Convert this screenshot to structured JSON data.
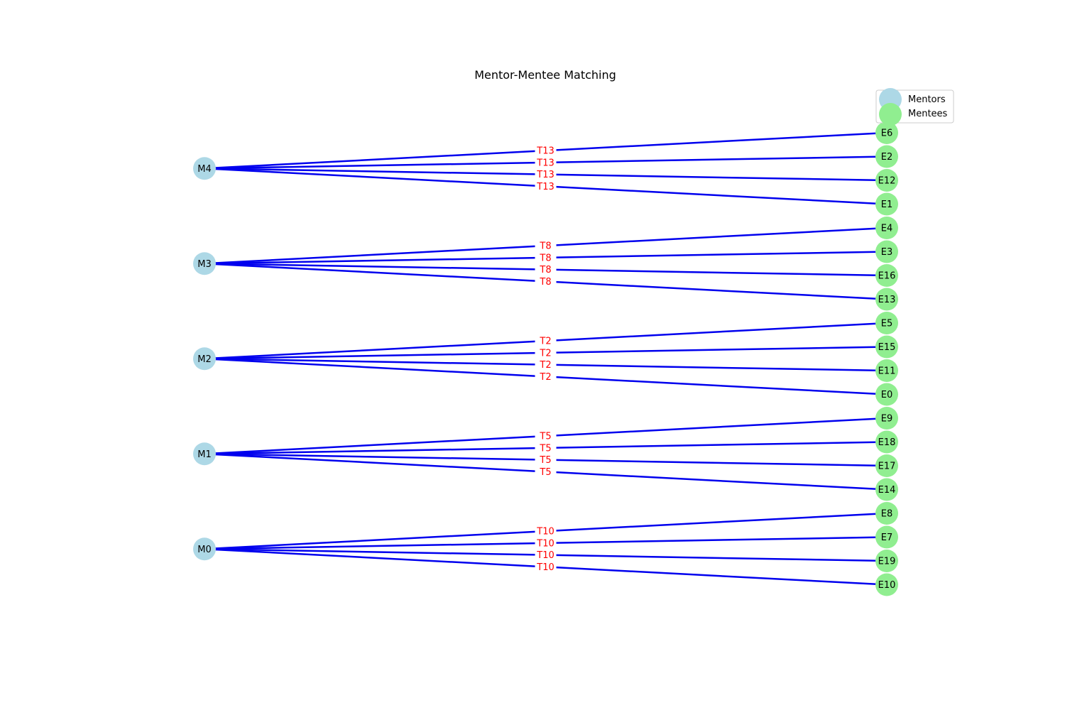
{
  "title": "Mentor-Mentee Matching",
  "colors": {
    "mentor": "#add8e6",
    "mentee": "#90ee90",
    "edge": "#0000ee",
    "edge_label": "#ff0000"
  },
  "legend": {
    "placement": "top-right",
    "mentors_label": "Mentors",
    "mentees_label": "Mentees"
  },
  "groups": [
    {
      "mentor": "M4",
      "topic": "T13",
      "mentees": [
        "E6",
        "E2",
        "E12",
        "E1"
      ]
    },
    {
      "mentor": "M3",
      "topic": "T8",
      "mentees": [
        "E4",
        "E3",
        "E16",
        "E13"
      ]
    },
    {
      "mentor": "M2",
      "topic": "T2",
      "mentees": [
        "E5",
        "E15",
        "E11",
        "E0"
      ]
    },
    {
      "mentor": "M1",
      "topic": "T5",
      "mentees": [
        "E9",
        "E18",
        "E17",
        "E14"
      ]
    },
    {
      "mentor": "M0",
      "topic": "T10",
      "mentees": [
        "E8",
        "E7",
        "E19",
        "E10"
      ]
    }
  ]
}
